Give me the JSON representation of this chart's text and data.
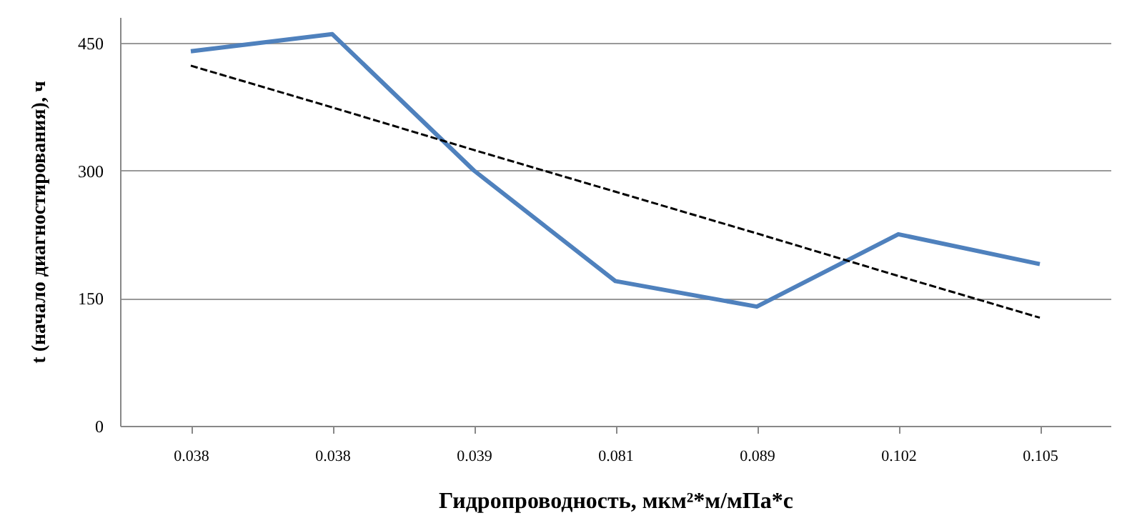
{
  "chart_data": {
    "type": "line",
    "xlabel": "Гидропроводность, мкм²*м/мПа*с",
    "ylabel": "t (начало диагностирования), ч",
    "categories": [
      "0.038",
      "0.038",
      "0.039",
      "0.081",
      "0.089",
      "0.102",
      "0.105"
    ],
    "series": [
      {
        "color": "#4f81bd",
        "values": [
          440,
          460,
          300,
          170,
          140,
          225,
          190
        ],
        "line_style": "solid"
      },
      {
        "type": "line",
        "color": "#000000",
        "values": [
          423,
          374,
          324,
          275,
          226,
          176,
          127
        ],
        "line_style": "dashed"
      }
    ],
    "ylim": [
      0,
      480
    ],
    "yticks": [
      0,
      150,
      300,
      450
    ],
    "grid": "y",
    "marker": "none"
  }
}
